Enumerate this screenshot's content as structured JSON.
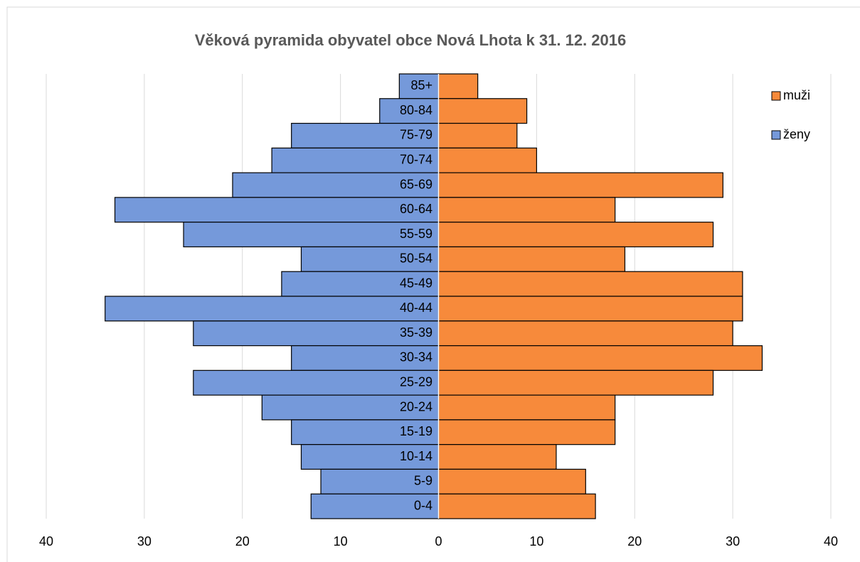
{
  "chart_data": {
    "type": "bar",
    "orientation": "horizontal",
    "title": "Věková pyramida obyvatel obce Nová Lhota k 31. 12. 2016",
    "categories": [
      "85+",
      "80-84",
      "75-79",
      "70-74",
      "65-69",
      "60-64",
      "55-59",
      "50-54",
      "45-49",
      "40-44",
      "35-39",
      "30-34",
      "25-29",
      "20-24",
      "15-19",
      "10-14",
      "5-9",
      "0-4"
    ],
    "series": [
      {
        "name": "muži",
        "color": "#f78a3b",
        "values": [
          4,
          9,
          8,
          10,
          29,
          18,
          28,
          19,
          31,
          31,
          30,
          33,
          28,
          18,
          18,
          12,
          15,
          16
        ]
      },
      {
        "name": "ženy",
        "color": "#7599da",
        "values": [
          -4,
          -6,
          -15,
          -17,
          -21,
          -33,
          -26,
          -14,
          -16,
          -34,
          -25,
          -15,
          -25,
          -18,
          -15,
          -14,
          -12,
          -13
        ]
      }
    ],
    "xlim": [
      -40,
      40
    ],
    "xticks": [
      {
        "value": -40,
        "label": "40"
      },
      {
        "value": -30,
        "label": "30"
      },
      {
        "value": -20,
        "label": "20"
      },
      {
        "value": -10,
        "label": "10"
      },
      0,
      10,
      20,
      30,
      40
    ],
    "grid": true,
    "legend": "top-right"
  }
}
